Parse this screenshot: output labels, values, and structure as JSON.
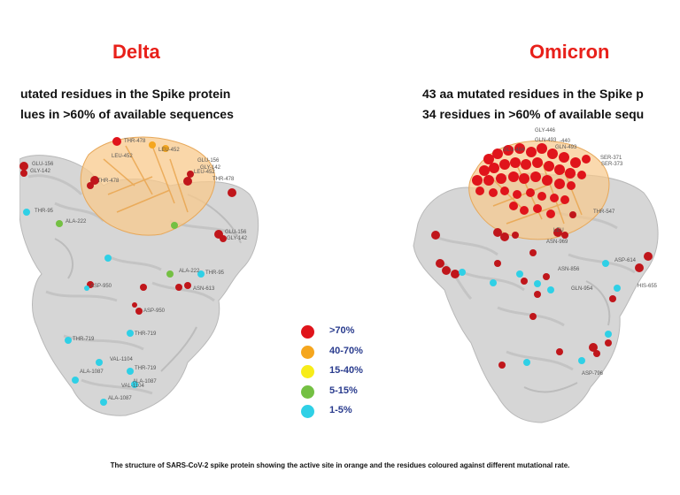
{
  "titles": {
    "delta": "Delta",
    "omicron": "Omicron"
  },
  "delta": {
    "line1": [
      "utated ",
      "residues",
      " in the ",
      "Spike",
      " protein"
    ],
    "line2": [
      "lues in >60% of ",
      "available",
      " ",
      "sequences"
    ],
    "residues": [
      {
        "label": "THR-478"
      },
      {
        "label": "LEU-452"
      },
      {
        "label": "LEU-452"
      },
      {
        "label": "GLU-156"
      },
      {
        "label": "GLY-142"
      },
      {
        "label": "LEU-452"
      },
      {
        "label": "GLU-156"
      },
      {
        "label": "GLY-142"
      },
      {
        "label": "THR-478"
      },
      {
        "label": "THR-478"
      },
      {
        "label": "THR-95"
      },
      {
        "label": "ALA-222"
      },
      {
        "label": "GLU-156"
      },
      {
        "label": "GLY-142"
      },
      {
        "label": "ALA-222"
      },
      {
        "label": "THR-95"
      },
      {
        "label": "ASP-950"
      },
      {
        "label": "ASN-613"
      },
      {
        "label": "ASP-950"
      },
      {
        "label": "THR-719"
      },
      {
        "label": "THR-719"
      },
      {
        "label": "VAL-1104"
      },
      {
        "label": "ALA-1087"
      },
      {
        "label": "THR-719"
      },
      {
        "label": "ALA-1087"
      },
      {
        "label": "VAL-1104"
      },
      {
        "label": "ALA-1087"
      }
    ]
  },
  "omicron": {
    "line1": [
      "43 aa ",
      "mutated",
      " ",
      "residues",
      " in the Spike p"
    ],
    "line2": [
      "34 ",
      "residues",
      " in >60% of ",
      "available",
      " ",
      "sequ"
    ],
    "residues": [
      {
        "label": "GLY-446"
      },
      {
        "label": "GLN-493"
      },
      {
        "label": "-440"
      },
      {
        "label": "GLN-493"
      },
      {
        "label": "GLU-484"
      },
      {
        "label": "SER-371"
      },
      {
        "label": "SER-373"
      },
      {
        "label": "THR-547"
      },
      {
        "label": "LEU"
      },
      {
        "label": "ASN-969"
      },
      {
        "label": "ASN-856"
      },
      {
        "label": "ASP-614"
      },
      {
        "label": "HIS-655"
      },
      {
        "label": "GLN-954"
      },
      {
        "label": "ASP-796"
      }
    ]
  },
  "legend": [
    {
      "label": ">70%",
      "color": "#e0141b"
    },
    {
      "label": "40-70%",
      "color": "#f5a61e"
    },
    {
      "label": "15-40%",
      "color": "#f7ec1a"
    },
    {
      "label": "5-15%",
      "color": "#74c043"
    },
    {
      "label": "1-5%",
      "color": "#2fd0e6"
    }
  ],
  "caption": "The structure of SARS-CoV-2 spike protein showing the active site in orange and the residues coloured against different mutational rate."
}
